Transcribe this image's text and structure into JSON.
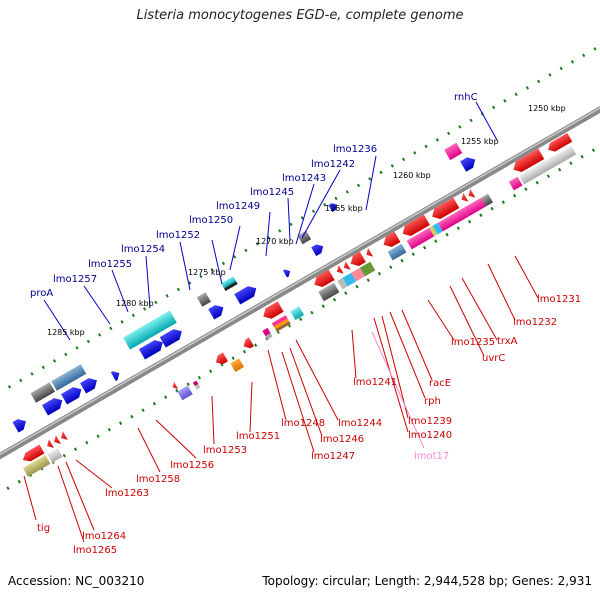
{
  "title": "Listeria monocytogenes EGD-e, complete genome",
  "footer": {
    "accession": "Accession: NC_003210",
    "topology": "Topology: circular; Length: 2,944,528 bp; Genes: 2,931"
  },
  "ticks": [
    "1250 kbp",
    "1255 kbp",
    "1260 kbp",
    "1265 kbp",
    "1270 kbp",
    "1275 kbp",
    "1280 kbp",
    "1285 kbp"
  ],
  "labels_top": [
    "rnhC",
    "lmo1236",
    "lmo1242",
    "lmo1243",
    "lmo1245",
    "lmo1249",
    "lmo1250",
    "lmo1252",
    "lmo1254",
    "lmo1255",
    "lmo1257",
    "proA"
  ],
  "labels_bottom": [
    "lmo1231",
    "lmo1232",
    "trxA",
    "uvrC",
    "lmo1235",
    "racE",
    "rph",
    "lmo1239",
    "lmo1240",
    "lmot17",
    "lmo1241",
    "lmo1244",
    "lmo1246",
    "lmo1247",
    "lmo1248",
    "lmo1251",
    "lmo1253",
    "lmo1256",
    "lmo1258",
    "lmo1263",
    "lmo1264",
    "lmo1265",
    "tig"
  ],
  "colors": {
    "forward_label": "#00008b",
    "reverse_label": "#cc0000",
    "rna_label": "#ff88cc",
    "backbone": "#888888",
    "tick_dot": "#1a7a1a"
  }
}
